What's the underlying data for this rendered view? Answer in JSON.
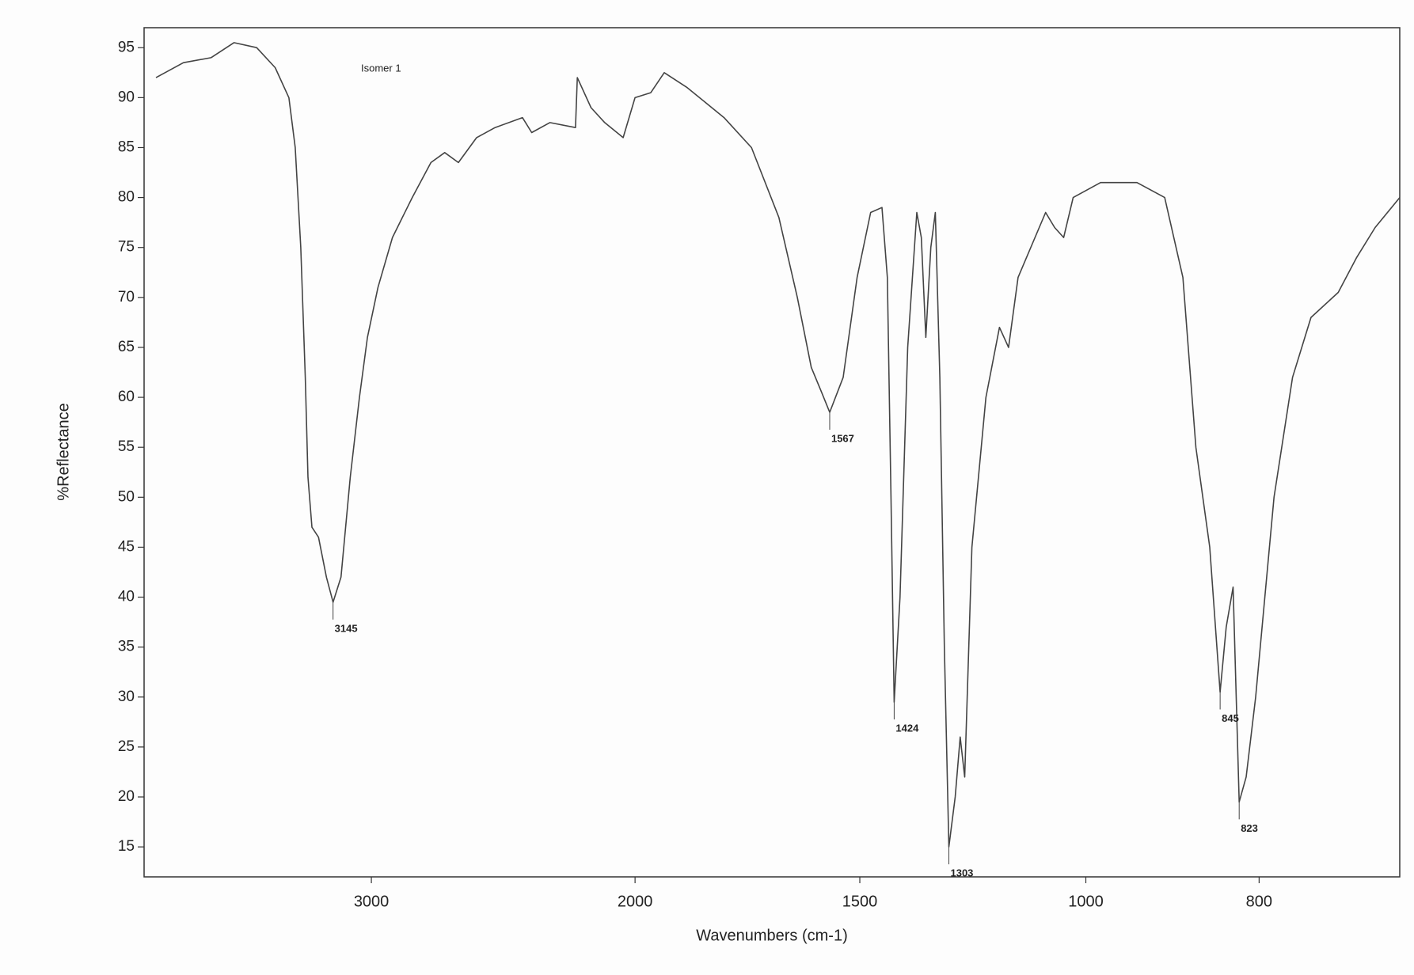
{
  "chart_data": {
    "type": "line",
    "annotation": "Isomer 1",
    "xlabel": "Wavenumbers (cm-1)",
    "ylabel": "%Reflectance",
    "xlim": [
      3860,
      640
    ],
    "xticks": [
      3000,
      2000,
      1500,
      1000,
      800
    ],
    "ylim": [
      12,
      97
    ],
    "yticks": [
      15,
      20,
      25,
      30,
      35,
      40,
      45,
      50,
      55,
      60,
      65,
      70,
      75,
      80,
      85,
      90,
      95
    ],
    "peaks": [
      3145,
      1567,
      1424,
      1303,
      845,
      823
    ],
    "x": [
      3815,
      3711,
      3607,
      3520,
      3434,
      3364,
      3312,
      3288,
      3267,
      3250,
      3240,
      3225,
      3200,
      3170,
      3145,
      3115,
      3080,
      3045,
      3015,
      2975,
      2920,
      2845,
      2774,
      2722,
      2670,
      2601,
      2531,
      2427,
      2392,
      2323,
      2226,
      2219,
      2167,
      2115,
      2045,
      2000,
      1965,
      1935,
      1884,
      1802,
      1741,
      1680,
      1639,
      1608,
      1585,
      1567,
      1537,
      1506,
      1476,
      1451,
      1439,
      1431,
      1424,
      1411,
      1394,
      1374,
      1364,
      1354,
      1343,
      1333,
      1323,
      1313,
      1303,
      1289,
      1278,
      1268,
      1252,
      1221,
      1191,
      1171,
      1150,
      1089,
      1069,
      1049,
      1028,
      983,
      941,
      909,
      888,
      873,
      857,
      845,
      838,
      830,
      823,
      815,
      804,
      783,
      762,
      741,
      710,
      689,
      668,
      640
    ],
    "series": [
      {
        "color": "#444444",
        "values": [
          92,
          93.5,
          94,
          95.5,
          95,
          93,
          90,
          85,
          75,
          62,
          52,
          47,
          46,
          42,
          39.5,
          42,
          52,
          60,
          66,
          71,
          76,
          80,
          83.5,
          84.5,
          83.5,
          86,
          87,
          88,
          86.5,
          87.5,
          87,
          92,
          89,
          87.5,
          86,
          90,
          90.5,
          92.5,
          91,
          88,
          85,
          78,
          70,
          63,
          60.5,
          58.5,
          62,
          72,
          78.5,
          79,
          72,
          50,
          29.5,
          40,
          65,
          78.5,
          76,
          66,
          75,
          78.5,
          62,
          35,
          15,
          20,
          26,
          22,
          45,
          60,
          67,
          65,
          72,
          78.5,
          77,
          76,
          80,
          81.5,
          81.5,
          80,
          72,
          55,
          45,
          30.5,
          37,
          41,
          19.5,
          22,
          30,
          50,
          62,
          68,
          70.5,
          74,
          77,
          80
        ]
      }
    ]
  }
}
